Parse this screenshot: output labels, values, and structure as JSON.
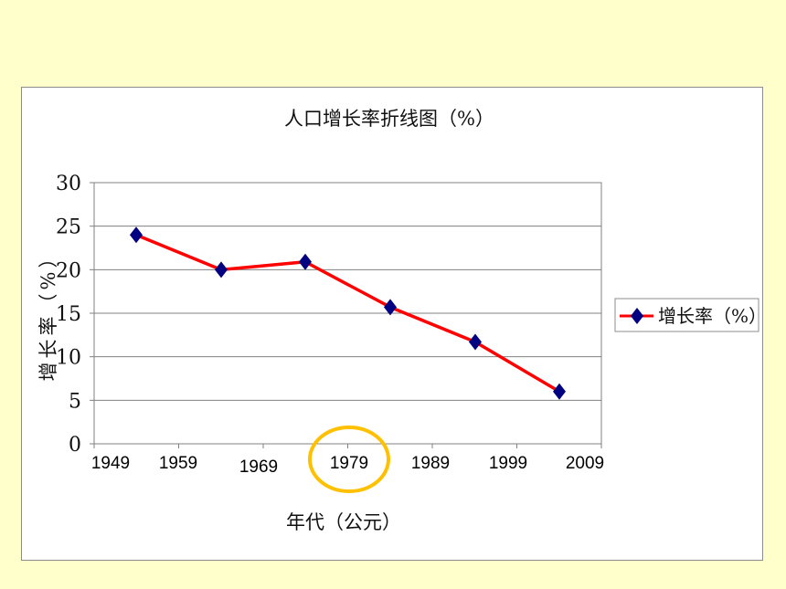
{
  "colors": {
    "background": "#FFFFCC",
    "line": "#FF0000",
    "marker": "#000080",
    "highlight_circle": "#FFC000",
    "grid": "#808080"
  },
  "chart_data": {
    "type": "line",
    "title": "人口增长率折线图（%）",
    "xlabel": "年代（公元）",
    "ylabel": "增长率（%）",
    "ylim": [
      0,
      30
    ],
    "yticks": [
      "0",
      "5",
      "10",
      "15",
      "20",
      "25",
      "30"
    ],
    "xticks": [
      "1949",
      "1959",
      "1969",
      "1979",
      "1989",
      "1999",
      "2009"
    ],
    "highlighted_tick": "1979",
    "grid": true,
    "legend_position": "right",
    "series": [
      {
        "name": "增长率（%）",
        "marker": "diamond",
        "values": [
          24,
          20,
          20.9,
          15.7,
          11.7,
          6
        ]
      }
    ]
  }
}
